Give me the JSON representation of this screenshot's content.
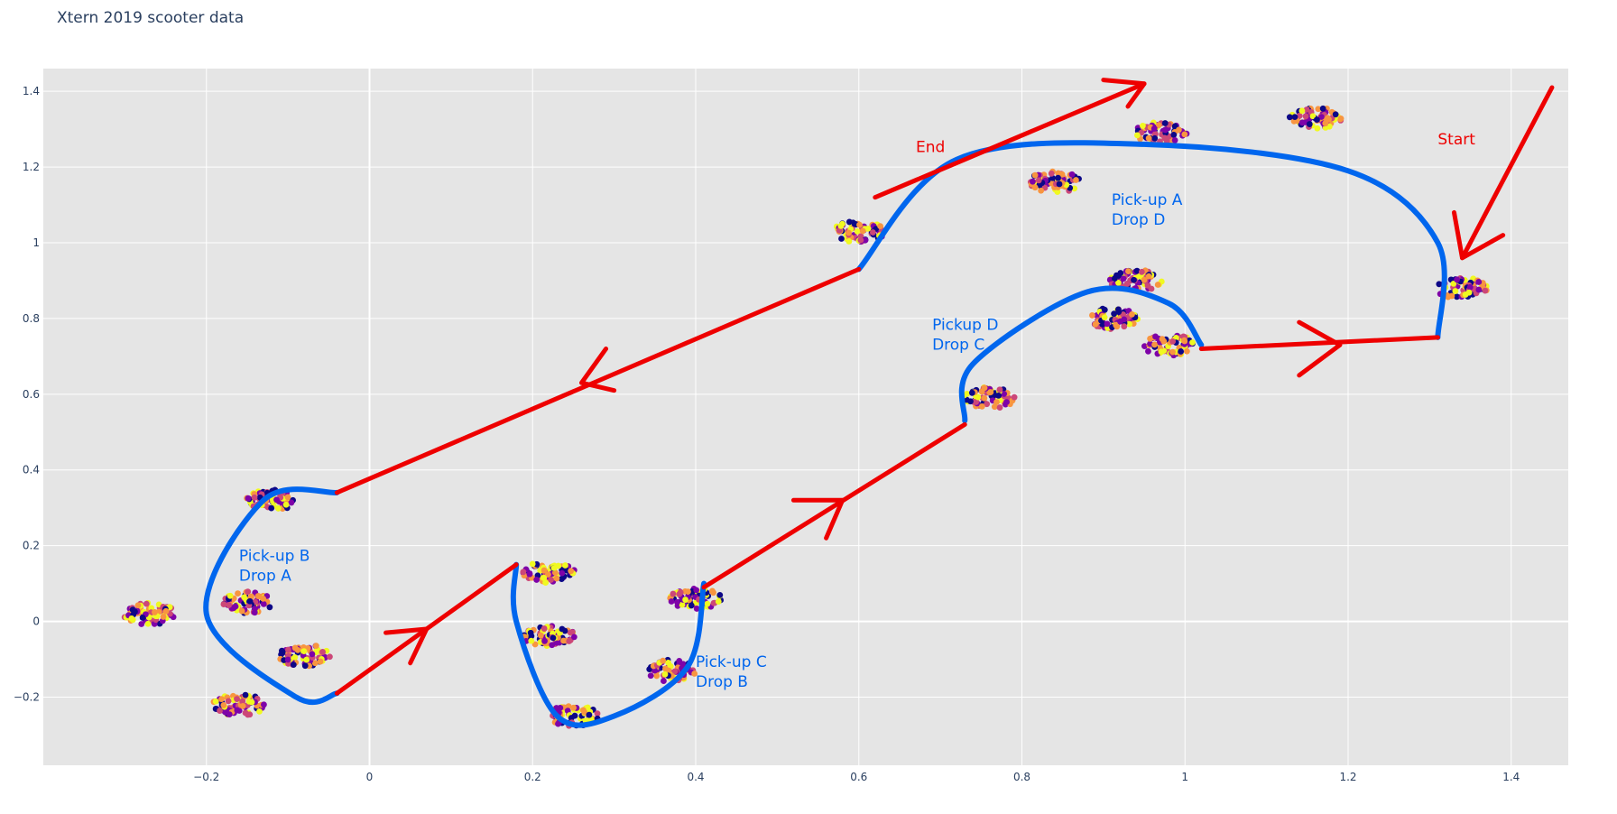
{
  "chart_data": {
    "type": "scatter",
    "title": "Xtern 2019 scooter data",
    "xlabel": "",
    "ylabel": "",
    "xlim": [
      -0.4,
      1.47
    ],
    "ylim": [
      -0.38,
      1.46
    ],
    "grid": true,
    "x_ticks": [
      -0.2,
      0,
      0.2,
      0.4,
      0.6,
      0.8,
      1,
      1.2,
      1.4
    ],
    "x_tick_labels": [
      "−0.2",
      "0",
      "0.2",
      "0.4",
      "0.6",
      "0.8",
      "1",
      "1.2",
      "1.4"
    ],
    "y_ticks": [
      -0.2,
      0,
      0.2,
      0.4,
      0.6,
      0.8,
      1,
      1.2,
      1.4
    ],
    "y_tick_labels": [
      "−0.2",
      "0",
      "0.2",
      "0.4",
      "0.6",
      "0.8",
      "1",
      "1.2",
      "1.4"
    ],
    "colorscale": [
      "#0d0887",
      "#7e03a8",
      "#cc4778",
      "#f89540",
      "#f0f921"
    ],
    "clusters": [
      {
        "x": 0.6,
        "y": 1.03
      },
      {
        "x": 0.84,
        "y": 1.16
      },
      {
        "x": 0.97,
        "y": 1.29
      },
      {
        "x": 1.16,
        "y": 1.33
      },
      {
        "x": 1.34,
        "y": 0.88
      },
      {
        "x": 0.94,
        "y": 0.9
      },
      {
        "x": 0.91,
        "y": 0.8
      },
      {
        "x": 0.98,
        "y": 0.73
      },
      {
        "x": 0.76,
        "y": 0.59
      },
      {
        "x": 0.4,
        "y": 0.06
      },
      {
        "x": 0.37,
        "y": -0.13
      },
      {
        "x": 0.25,
        "y": -0.25
      },
      {
        "x": 0.22,
        "y": -0.04
      },
      {
        "x": 0.22,
        "y": 0.13
      },
      {
        "x": -0.12,
        "y": 0.32
      },
      {
        "x": -0.15,
        "y": 0.05
      },
      {
        "x": -0.27,
        "y": 0.02
      },
      {
        "x": -0.08,
        "y": -0.09
      },
      {
        "x": -0.16,
        "y": -0.22
      }
    ],
    "blue_route_paths": [
      [
        [
          1.31,
          0.75
        ],
        [
          1.31,
          1.0
        ],
        [
          1.2,
          1.19
        ],
        [
          0.95,
          1.26
        ],
        [
          0.72,
          1.22
        ],
        [
          0.6,
          0.93
        ]
      ],
      [
        [
          1.02,
          0.73
        ],
        [
          0.98,
          0.84
        ],
        [
          0.88,
          0.87
        ],
        [
          0.74,
          0.68
        ],
        [
          0.73,
          0.53
        ]
      ],
      [
        [
          0.41,
          0.1
        ],
        [
          0.39,
          -0.12
        ],
        [
          0.3,
          -0.25
        ],
        [
          0.23,
          -0.25
        ],
        [
          0.18,
          0.0
        ],
        [
          0.18,
          0.15
        ]
      ],
      [
        [
          -0.04,
          0.34
        ],
        [
          -0.13,
          0.32
        ],
        [
          -0.2,
          0.02
        ],
        [
          -0.09,
          -0.2
        ],
        [
          -0.04,
          -0.19
        ]
      ]
    ],
    "red_route_paths": [
      [
        [
          1.02,
          0.72
        ],
        [
          1.31,
          0.75
        ]
      ],
      [
        [
          0.73,
          0.52
        ],
        [
          0.41,
          0.09
        ]
      ],
      [
        [
          0.18,
          0.15
        ],
        [
          -0.04,
          -0.19
        ]
      ],
      [
        [
          -0.04,
          0.34
        ],
        [
          0.6,
          0.93
        ]
      ],
      [
        [
          0.62,
          1.12
        ],
        [
          0.95,
          1.42
        ]
      ]
    ],
    "red_arrow_heads": [
      [
        [
          1.14,
          0.79
        ],
        [
          1.19,
          0.73
        ],
        [
          1.14,
          0.65
        ]
      ],
      [
        [
          0.52,
          0.32
        ],
        [
          0.58,
          0.32
        ],
        [
          0.56,
          0.22
        ]
      ],
      [
        [
          0.02,
          -0.03
        ],
        [
          0.07,
          -0.02
        ],
        [
          0.05,
          -0.11
        ]
      ],
      [
        [
          0.29,
          0.72
        ],
        [
          0.26,
          0.63
        ],
        [
          0.3,
          0.61
        ]
      ],
      [
        [
          0.9,
          1.43
        ],
        [
          0.95,
          1.42
        ],
        [
          0.93,
          1.36
        ]
      ],
      [
        [
          1.45,
          1.41
        ],
        [
          1.34,
          0.96
        ]
      ],
      [
        [
          1.33,
          1.08
        ],
        [
          1.34,
          0.96
        ],
        [
          1.39,
          1.02
        ]
      ]
    ],
    "annotations": [
      {
        "text": "Start",
        "x": 1.31,
        "y": 1.26,
        "color": "red"
      },
      {
        "text": "End",
        "x": 0.67,
        "y": 1.24,
        "color": "red"
      },
      {
        "text": "Pick-up A",
        "x": 0.91,
        "y": 1.1,
        "color": "blue",
        "line2": "Drop D"
      },
      {
        "text": "Pickup D",
        "x": 0.69,
        "y": 0.77,
        "color": "blue",
        "line2": "Drop C"
      },
      {
        "text": "Pick-up B",
        "x": -0.16,
        "y": 0.16,
        "color": "blue",
        "line2": "Drop A"
      },
      {
        "text": "Pick-up C",
        "x": 0.4,
        "y": -0.12,
        "color": "blue",
        "line2": "Drop B"
      }
    ]
  }
}
